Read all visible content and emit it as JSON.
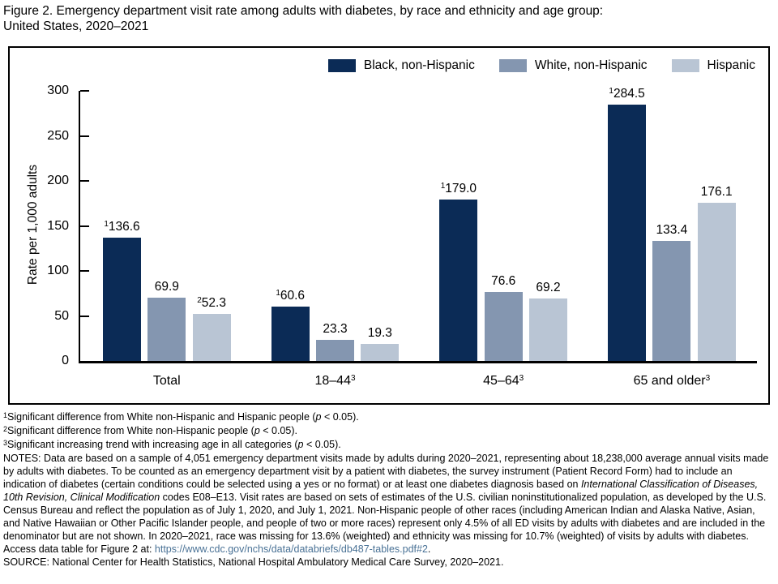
{
  "title": {
    "line1": "Figure 2. Emergency department visit rate among adults with diabetes, by race and ethnicity and age group:",
    "line2": "United States, 2020–2021"
  },
  "colors": {
    "black_non_hispanic": "#0B2B56",
    "white_non_hispanic": "#8496B0",
    "hispanic": "#B9C5D4",
    "axis": "#000000",
    "link": "#4A7296"
  },
  "chart_data": {
    "type": "bar",
    "title": "Emergency department visit rate among adults with diabetes, by race and ethnicity and age group: United States, 2020–2021",
    "ylabel": "Rate per 1,000 adults",
    "xlabel": "",
    "ylim": [
      0,
      300
    ],
    "yticks": [
      0,
      50,
      100,
      150,
      200,
      250,
      300
    ],
    "grid": false,
    "legend_position": "top-right",
    "categories": [
      {
        "label": "Total",
        "sup": ""
      },
      {
        "label": "18–44",
        "sup": "3"
      },
      {
        "label": "45–64",
        "sup": "3"
      },
      {
        "label": "65 and older",
        "sup": "3"
      }
    ],
    "series": [
      {
        "name": "Black, non-Hispanic",
        "color": "#0B2B56",
        "values": [
          136.6,
          60.6,
          179.0,
          284.5
        ],
        "value_sups": [
          "1",
          "1",
          "1",
          "1"
        ]
      },
      {
        "name": "White, non-Hispanic",
        "color": "#8496B0",
        "values": [
          69.9,
          23.3,
          76.6,
          133.4
        ],
        "value_sups": [
          "",
          "",
          "",
          ""
        ]
      },
      {
        "name": "Hispanic",
        "color": "#B9C5D4",
        "values": [
          52.3,
          19.3,
          69.2,
          176.1
        ],
        "value_sups": [
          "2",
          "",
          "",
          ""
        ]
      }
    ]
  },
  "footnotes": [
    [
      {
        "t": "1",
        "s": "sup"
      },
      {
        "t": "Significant difference from White non-Hispanic and Hispanic people (",
        "s": "n"
      },
      {
        "t": "p",
        "s": "i"
      },
      {
        "t": " < 0.05).",
        "s": "n"
      }
    ],
    [
      {
        "t": "2",
        "s": "sup"
      },
      {
        "t": "Significant difference from White non-Hispanic people (",
        "s": "n"
      },
      {
        "t": "p",
        "s": "i"
      },
      {
        "t": " < 0.05).",
        "s": "n"
      }
    ],
    [
      {
        "t": "3",
        "s": "sup"
      },
      {
        "t": "Significant increasing trend with increasing age in all categories (",
        "s": "n"
      },
      {
        "t": "p",
        "s": "i"
      },
      {
        "t": " < 0.05).",
        "s": "n"
      }
    ]
  ],
  "notes": [
    {
      "t": "NOTES: Data are based on a sample of 4,051 emergency department visits made by adults during 2020–2021, representing about 18,238,000 average annual visits made by adults with diabetes. To be counted as an emergency department visit by a patient with diabetes, the survey instrument (Patient Record Form) had to include an indication of diabetes (certain conditions could be selected using a yes or no format) or at least one diabetes diagnosis based on ",
      "s": "n"
    },
    {
      "t": "International Classification of Diseases, 10th Revision, Clinical Modification",
      "s": "i"
    },
    {
      "t": " codes E08–E13. Visit rates are based on sets of estimates of the U.S. civilian noninstitutionalized population, as developed by the U.S. Census Bureau and reflect the population as of July 1, 2020, and July 1, 2021. Non-Hispanic people of other races (including American Indian and Alaska Native, Asian, and Native Hawaiian or Other Pacific Islander people, and people of two or more races) represent only 4.5% of all ED visits by adults with diabetes and are included in the denominator but are not shown. In 2020–2021, race was missing for 13.6% (weighted) and ethnicity was missing for 10.7% (weighted) of visits by adults with diabetes. Access data table for Figure 2 at: ",
      "s": "n"
    },
    {
      "t": "https://www.cdc.gov/nchs/data/databriefs/db487-tables.pdf#2",
      "s": "link"
    },
    {
      "t": ".",
      "s": "n"
    }
  ],
  "source": [
    {
      "t": "SOURCE: National Center for Health Statistics, National Hospital Ambulatory Medical Care Survey, 2020–2021.",
      "s": "n"
    }
  ]
}
